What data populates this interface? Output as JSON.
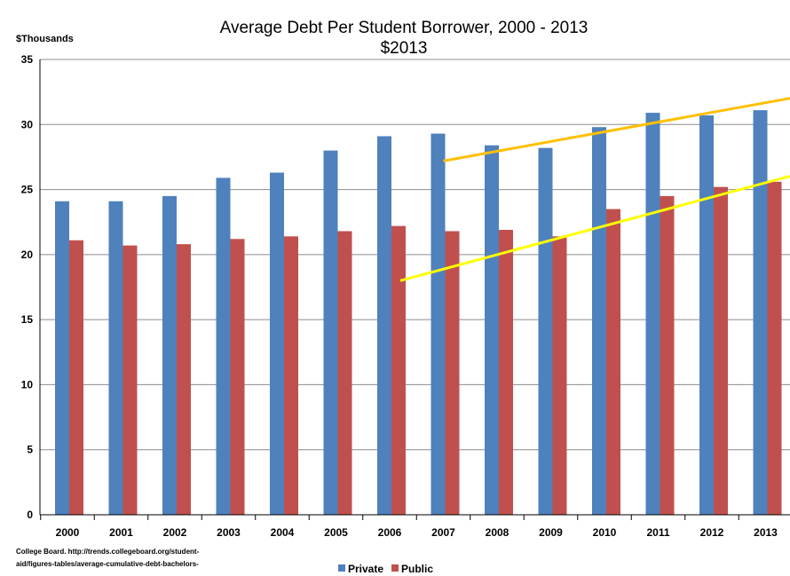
{
  "chart_data": {
    "type": "bar",
    "title": "Average Debt Per Student Borrower, 2000 - 2013",
    "subtitle": "$2013",
    "ylabel": "$Thousands",
    "xlabel": "",
    "ylim": [
      0,
      35
    ],
    "yticks": [
      0,
      5,
      10,
      15,
      20,
      25,
      30,
      35
    ],
    "grid": "horizontal",
    "legend": "bottom",
    "categories": [
      "2000",
      "2001",
      "2002",
      "2003",
      "2004",
      "2005",
      "2006",
      "2007",
      "2008",
      "2009",
      "2010",
      "2011",
      "2012",
      "2013"
    ],
    "series": [
      {
        "name": "Private",
        "color": "#4f81bd",
        "values": [
          24.1,
          24.1,
          24.5,
          25.9,
          26.3,
          28.0,
          29.1,
          29.3,
          28.4,
          28.2,
          29.8,
          30.9,
          30.7,
          31.1
        ]
      },
      {
        "name": "Public",
        "color": "#c0504d",
        "values": [
          21.1,
          20.7,
          20.8,
          21.2,
          21.4,
          21.8,
          22.2,
          21.8,
          21.9,
          21.4,
          23.5,
          24.5,
          25.2,
          25.6
        ]
      }
    ],
    "trend_lines": [
      {
        "color": "#ffc000",
        "start": {
          "x": 7.0,
          "y": 27.2
        },
        "end": {
          "x": 13.7,
          "y": 32.2
        }
      },
      {
        "color": "#ffff00",
        "start": {
          "x": 6.2,
          "y": 18.0
        },
        "end": {
          "x": 13.7,
          "y": 26.3
        }
      }
    ]
  },
  "source": {
    "line1": "College Board. http://trends.collegeboard.org/student-",
    "line2": "aid/figures-tables/average-cumulative-debt-bachelors-"
  }
}
